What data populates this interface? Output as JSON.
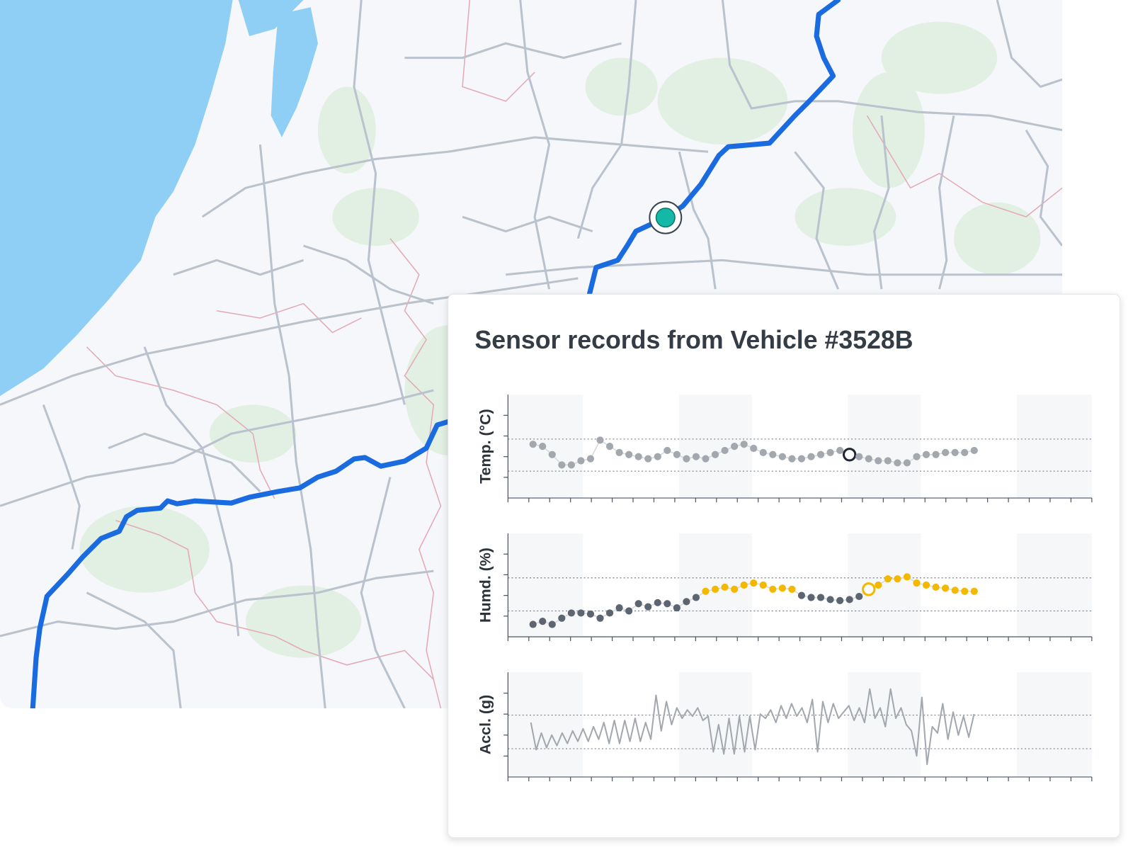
{
  "panel_title": "Sensor records from Vehicle #3528B",
  "chart_data": [
    {
      "type": "scatter",
      "y_label": "Temp. (°C)",
      "x": [
        1.2,
        1.66,
        2.12,
        2.58,
        3.04,
        3.5,
        3.96,
        4.42,
        4.88,
        5.34,
        5.8,
        6.26,
        6.72,
        7.18,
        7.64,
        8.1,
        8.56,
        9.02,
        9.48,
        9.94,
        10.4,
        10.86,
        11.32,
        11.78,
        12.24,
        12.7,
        13.16,
        13.62,
        14.08,
        14.54,
        15.0,
        15.46,
        15.92,
        16.38,
        16.84,
        17.3,
        17.76,
        18.22,
        18.68,
        19.14,
        19.6,
        20.06,
        20.52,
        20.98,
        21.44,
        21.9,
        22.36
      ],
      "values": [
        2.6,
        2.5,
        2.1,
        1.6,
        1.6,
        1.8,
        1.9,
        2.8,
        2.5,
        2.2,
        2.1,
        2.0,
        1.9,
        2.0,
        2.3,
        2.1,
        1.9,
        2.0,
        1.9,
        2.1,
        2.3,
        2.5,
        2.6,
        2.4,
        2.2,
        2.1,
        2.0,
        1.9,
        1.9,
        2.0,
        2.1,
        2.2,
        2.3,
        2.1,
        2.0,
        1.9,
        1.8,
        1.8,
        1.7,
        1.7,
        2.0,
        2.1,
        2.1,
        2.2,
        2.2,
        2.2,
        2.3
      ],
      "color": "#a3a8af",
      "highlight": 33,
      "highlight_color": "#1f2630",
      "xlim": [
        0,
        28
      ],
      "xticks": [
        0,
        1,
        2,
        3,
        4,
        5,
        6,
        7,
        8,
        9,
        10,
        11,
        12,
        13,
        14,
        15,
        16,
        17,
        18,
        19,
        20,
        21,
        22,
        23,
        24,
        25,
        26,
        27,
        28
      ],
      "ylim": [
        0,
        5
      ],
      "yticks": [
        1,
        2,
        3,
        4
      ],
      "reference_lines": [
        2.85,
        1.3
      ],
      "shaded_ranges": [
        [
          0,
          3.6
        ],
        [
          8.2,
          11.7
        ],
        [
          16.3,
          19.8
        ],
        [
          24.4,
          28
        ]
      ]
    },
    {
      "type": "scatter",
      "y_label": "Humd. (%)",
      "x": [
        1.2,
        1.66,
        2.12,
        2.58,
        3.04,
        3.5,
        3.96,
        4.42,
        4.88,
        5.34,
        5.8,
        6.26,
        6.72,
        7.18,
        7.64,
        8.1,
        8.56,
        9.02,
        9.48,
        9.94,
        10.4,
        10.86,
        11.32,
        11.78,
        12.24,
        12.7,
        13.16,
        13.62,
        14.08,
        14.54,
        15.0,
        15.46,
        15.92,
        16.38,
        16.84,
        17.3,
        17.76,
        18.22,
        18.68,
        19.14,
        19.6,
        20.06,
        20.52,
        20.98,
        21.44,
        21.9,
        22.36
      ],
      "values": [
        0.6,
        0.75,
        0.6,
        0.9,
        1.15,
        1.15,
        1.1,
        0.9,
        1.15,
        1.4,
        1.25,
        1.6,
        1.45,
        1.65,
        1.6,
        1.4,
        1.7,
        1.9,
        2.2,
        2.3,
        2.4,
        2.3,
        2.5,
        2.6,
        2.5,
        2.3,
        2.35,
        2.3,
        2.0,
        1.9,
        1.9,
        1.8,
        1.75,
        1.8,
        1.95,
        2.3,
        2.5,
        2.8,
        2.8,
        2.9,
        2.6,
        2.5,
        2.4,
        2.35,
        2.25,
        2.2,
        2.2
      ],
      "color": "#5d6570",
      "alert_color": "#f5b800",
      "alert_above": 2.1,
      "highlight": 35,
      "highlight_color": "#f5b800",
      "xlim": [
        0,
        28
      ],
      "xticks": [
        0,
        1,
        2,
        3,
        4,
        5,
        6,
        7,
        8,
        9,
        10,
        11,
        12,
        13,
        14,
        15,
        16,
        17,
        18,
        19,
        20,
        21,
        22,
        23,
        24,
        25,
        26,
        27,
        28
      ],
      "ylim": [
        0,
        5
      ],
      "yticks": [
        1,
        2,
        3,
        4
      ],
      "reference_lines": [
        2.85,
        1.25
      ],
      "shaded_ranges": [
        [
          0,
          3.6
        ],
        [
          8.2,
          11.7
        ],
        [
          16.3,
          19.8
        ],
        [
          24.4,
          28
        ]
      ]
    },
    {
      "type": "line",
      "y_label": "Accl. (g)",
      "x": [
        1.1,
        1.35,
        1.6,
        1.85,
        2.1,
        2.35,
        2.6,
        2.85,
        3.1,
        3.35,
        3.6,
        3.85,
        4.1,
        4.35,
        4.6,
        4.85,
        5.1,
        5.35,
        5.6,
        5.85,
        6.1,
        6.35,
        6.6,
        6.85,
        7.1,
        7.35,
        7.6,
        7.85,
        8.1,
        8.35,
        8.6,
        8.85,
        9.1,
        9.35,
        9.6,
        9.85,
        10.1,
        10.35,
        10.6,
        10.85,
        11.1,
        11.35,
        11.6,
        11.85,
        12.1,
        12.35,
        12.6,
        12.85,
        13.1,
        13.35,
        13.6,
        13.85,
        14.1,
        14.35,
        14.6,
        14.85,
        15.1,
        15.35,
        15.6,
        15.85,
        16.1,
        16.35,
        16.6,
        16.85,
        17.1,
        17.35,
        17.6,
        17.85,
        18.1,
        18.35,
        18.6,
        18.85,
        19.1,
        19.35,
        19.6,
        19.85,
        20.1,
        20.35,
        20.6,
        20.85,
        21.1,
        21.35,
        21.6,
        21.85,
        22.1,
        22.35
      ],
      "values": [
        2.6,
        1.3,
        2.1,
        1.4,
        2.0,
        1.5,
        2.1,
        1.6,
        2.2,
        1.7,
        2.3,
        1.7,
        2.4,
        1.8,
        2.6,
        1.6,
        2.7,
        1.6,
        2.7,
        1.7,
        2.8,
        1.7,
        2.6,
        1.8,
        3.9,
        2.2,
        3.6,
        2.5,
        3.3,
        2.8,
        3.2,
        2.9,
        3.3,
        2.7,
        2.9,
        1.2,
        2.5,
        1.1,
        2.8,
        1.1,
        2.9,
        1.2,
        2.9,
        1.3,
        3.0,
        2.8,
        3.2,
        2.6,
        3.4,
        2.8,
        3.5,
        2.9,
        3.3,
        2.6,
        3.7,
        1.2,
        3.6,
        2.6,
        3.5,
        2.8,
        3.1,
        3.4,
        2.7,
        3.3,
        2.6,
        4.2,
        2.8,
        3.3,
        2.4,
        4.2,
        2.8,
        3.3,
        2.5,
        2.2,
        1.0,
        3.8,
        0.6,
        2.4,
        2.1,
        3.5,
        1.8,
        3.1,
        2.0,
        2.9,
        1.9,
        3.0
      ],
      "color": "#a3a8af",
      "xlim": [
        0,
        28
      ],
      "xticks": [
        0,
        1,
        2,
        3,
        4,
        5,
        6,
        7,
        8,
        9,
        10,
        11,
        12,
        13,
        14,
        15,
        16,
        17,
        18,
        19,
        20,
        21,
        22,
        23,
        24,
        25,
        26,
        27,
        28
      ],
      "ylim": [
        0,
        5
      ],
      "yticks": [
        1,
        2,
        3,
        4
      ],
      "reference_lines": [
        2.95,
        1.35
      ],
      "shaded_ranges": [
        [
          0,
          3.6
        ],
        [
          8.2,
          11.7
        ],
        [
          16.3,
          19.8
        ],
        [
          24.4,
          28
        ]
      ]
    }
  ]
}
